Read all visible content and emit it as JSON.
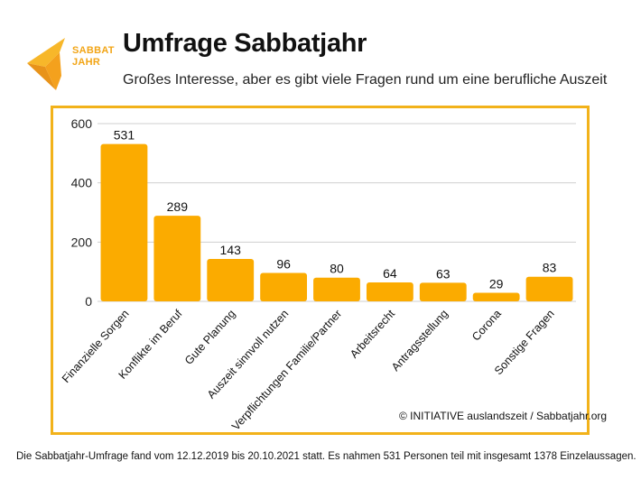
{
  "header": {
    "logo_line1": "SABBAT",
    "logo_line2": "JAHR",
    "title": "Umfrage Sabbatjahr",
    "subtitle": "Großes Interesse, aber es gibt viele Fragen rund um eine berufliche Auszeit"
  },
  "credit": "© INITIATIVE auslandszeit / Sabbatjahr.org",
  "footnote": "Die Sabbatjahr-Umfrage fand vom 12.12.2019 bis 20.10.2021 statt. Es nahmen 531 Personen teil mit insgesamt 1378 Einzelaussagen.",
  "colors": {
    "accent": "#f2b21a",
    "bar": "#fbab00"
  },
  "chart_data": {
    "type": "bar",
    "categories": [
      "Finanzielle Sorgen",
      "Konflikte im Beruf",
      "Gute Planung",
      "Auszeit sinnvoll nutzen",
      "Verpflichtungen Familie/Partner",
      "Arbeitsrecht",
      "Antragsstellung",
      "Corona",
      "Sonstige Fragen"
    ],
    "values": [
      531,
      289,
      143,
      96,
      80,
      64,
      63,
      29,
      83
    ],
    "yticks": [
      0,
      200,
      400,
      600
    ],
    "ylim": [
      0,
      600
    ],
    "grid": true,
    "data_labels": true
  }
}
